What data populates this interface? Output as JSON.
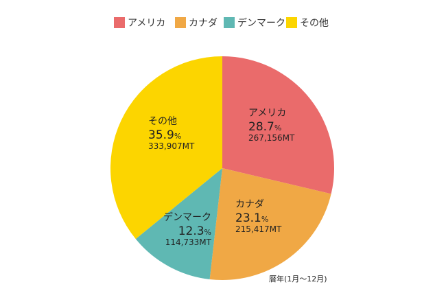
{
  "chart_data": {
    "type": "pie",
    "slices": [
      {
        "name": "アメリカ",
        "percent": 28.7,
        "value": "267,156MT",
        "color": "#ea6b6b"
      },
      {
        "name": "カナダ",
        "percent": 23.1,
        "value": "215,417MT",
        "color": "#f0a845"
      },
      {
        "name": "デンマーク",
        "percent": 12.3,
        "value": "114,733MT",
        "color": "#5fb8b3"
      },
      {
        "name": "その他",
        "percent": 35.9,
        "value": "333,907MT",
        "color": "#fcd500"
      }
    ],
    "percent_sign": "%",
    "legend_position": "top",
    "footnote": "暦年(1月〜12月)"
  }
}
